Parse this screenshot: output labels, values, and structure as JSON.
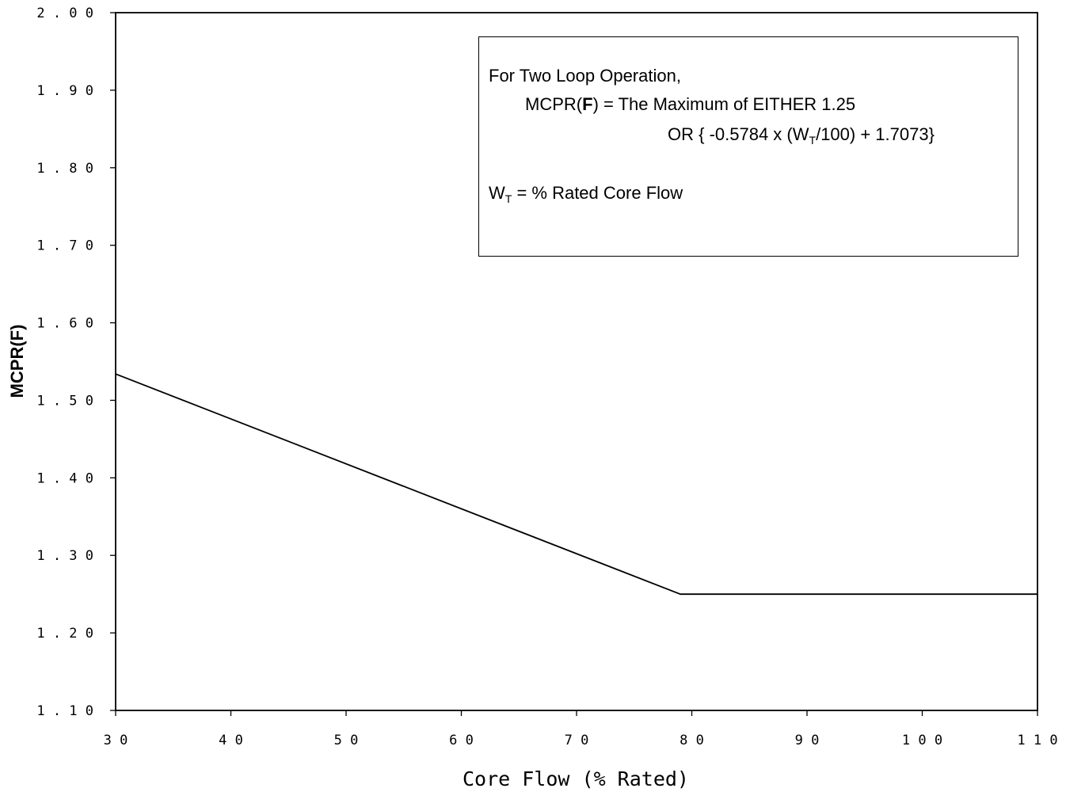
{
  "chart_data": {
    "type": "line",
    "xlabel": "Core Flow (% Rated)",
    "ylabel": "MCPR(F)",
    "xlim": [
      30,
      110
    ],
    "ylim": [
      1.1,
      2.0
    ],
    "x_ticks": [
      30,
      40,
      50,
      60,
      70,
      80,
      90,
      100,
      110
    ],
    "x_tick_labels": [
      "3 0",
      "4 0",
      "5 0",
      "6 0",
      "7 0",
      "8 0",
      "9 0",
      "1 0 0",
      "1 1 0"
    ],
    "y_ticks": [
      1.1,
      1.2,
      1.3,
      1.4,
      1.5,
      1.6,
      1.7,
      1.8,
      1.9,
      2.0
    ],
    "y_tick_labels": [
      "1 . 1 0",
      "1 . 2 0",
      "1 . 3 0",
      "1 . 4 0",
      "1 . 5 0",
      "1 . 6 0",
      "1 . 7 0",
      "1 . 8 0",
      "1 . 9 0",
      "2 . 0 0"
    ],
    "grid": false,
    "series": [
      {
        "x": [
          30,
          79,
          110
        ],
        "y": [
          1.534,
          1.25,
          1.25
        ]
      }
    ],
    "annotation": {
      "line1": "For Two Loop Operation,",
      "line2_prefix": "MCPR(",
      "line2_bold": "F",
      "line2_suffix": ") = The Maximum of EITHER 1.25",
      "line3_prefix": "OR { -0.5784 x (W",
      "line3_sub": "T",
      "line3_suffix": "/100) + 1.7073}",
      "line4_prefix": "W",
      "line4_sub": "T",
      "line4_suffix": " = % Rated Core Flow"
    }
  }
}
